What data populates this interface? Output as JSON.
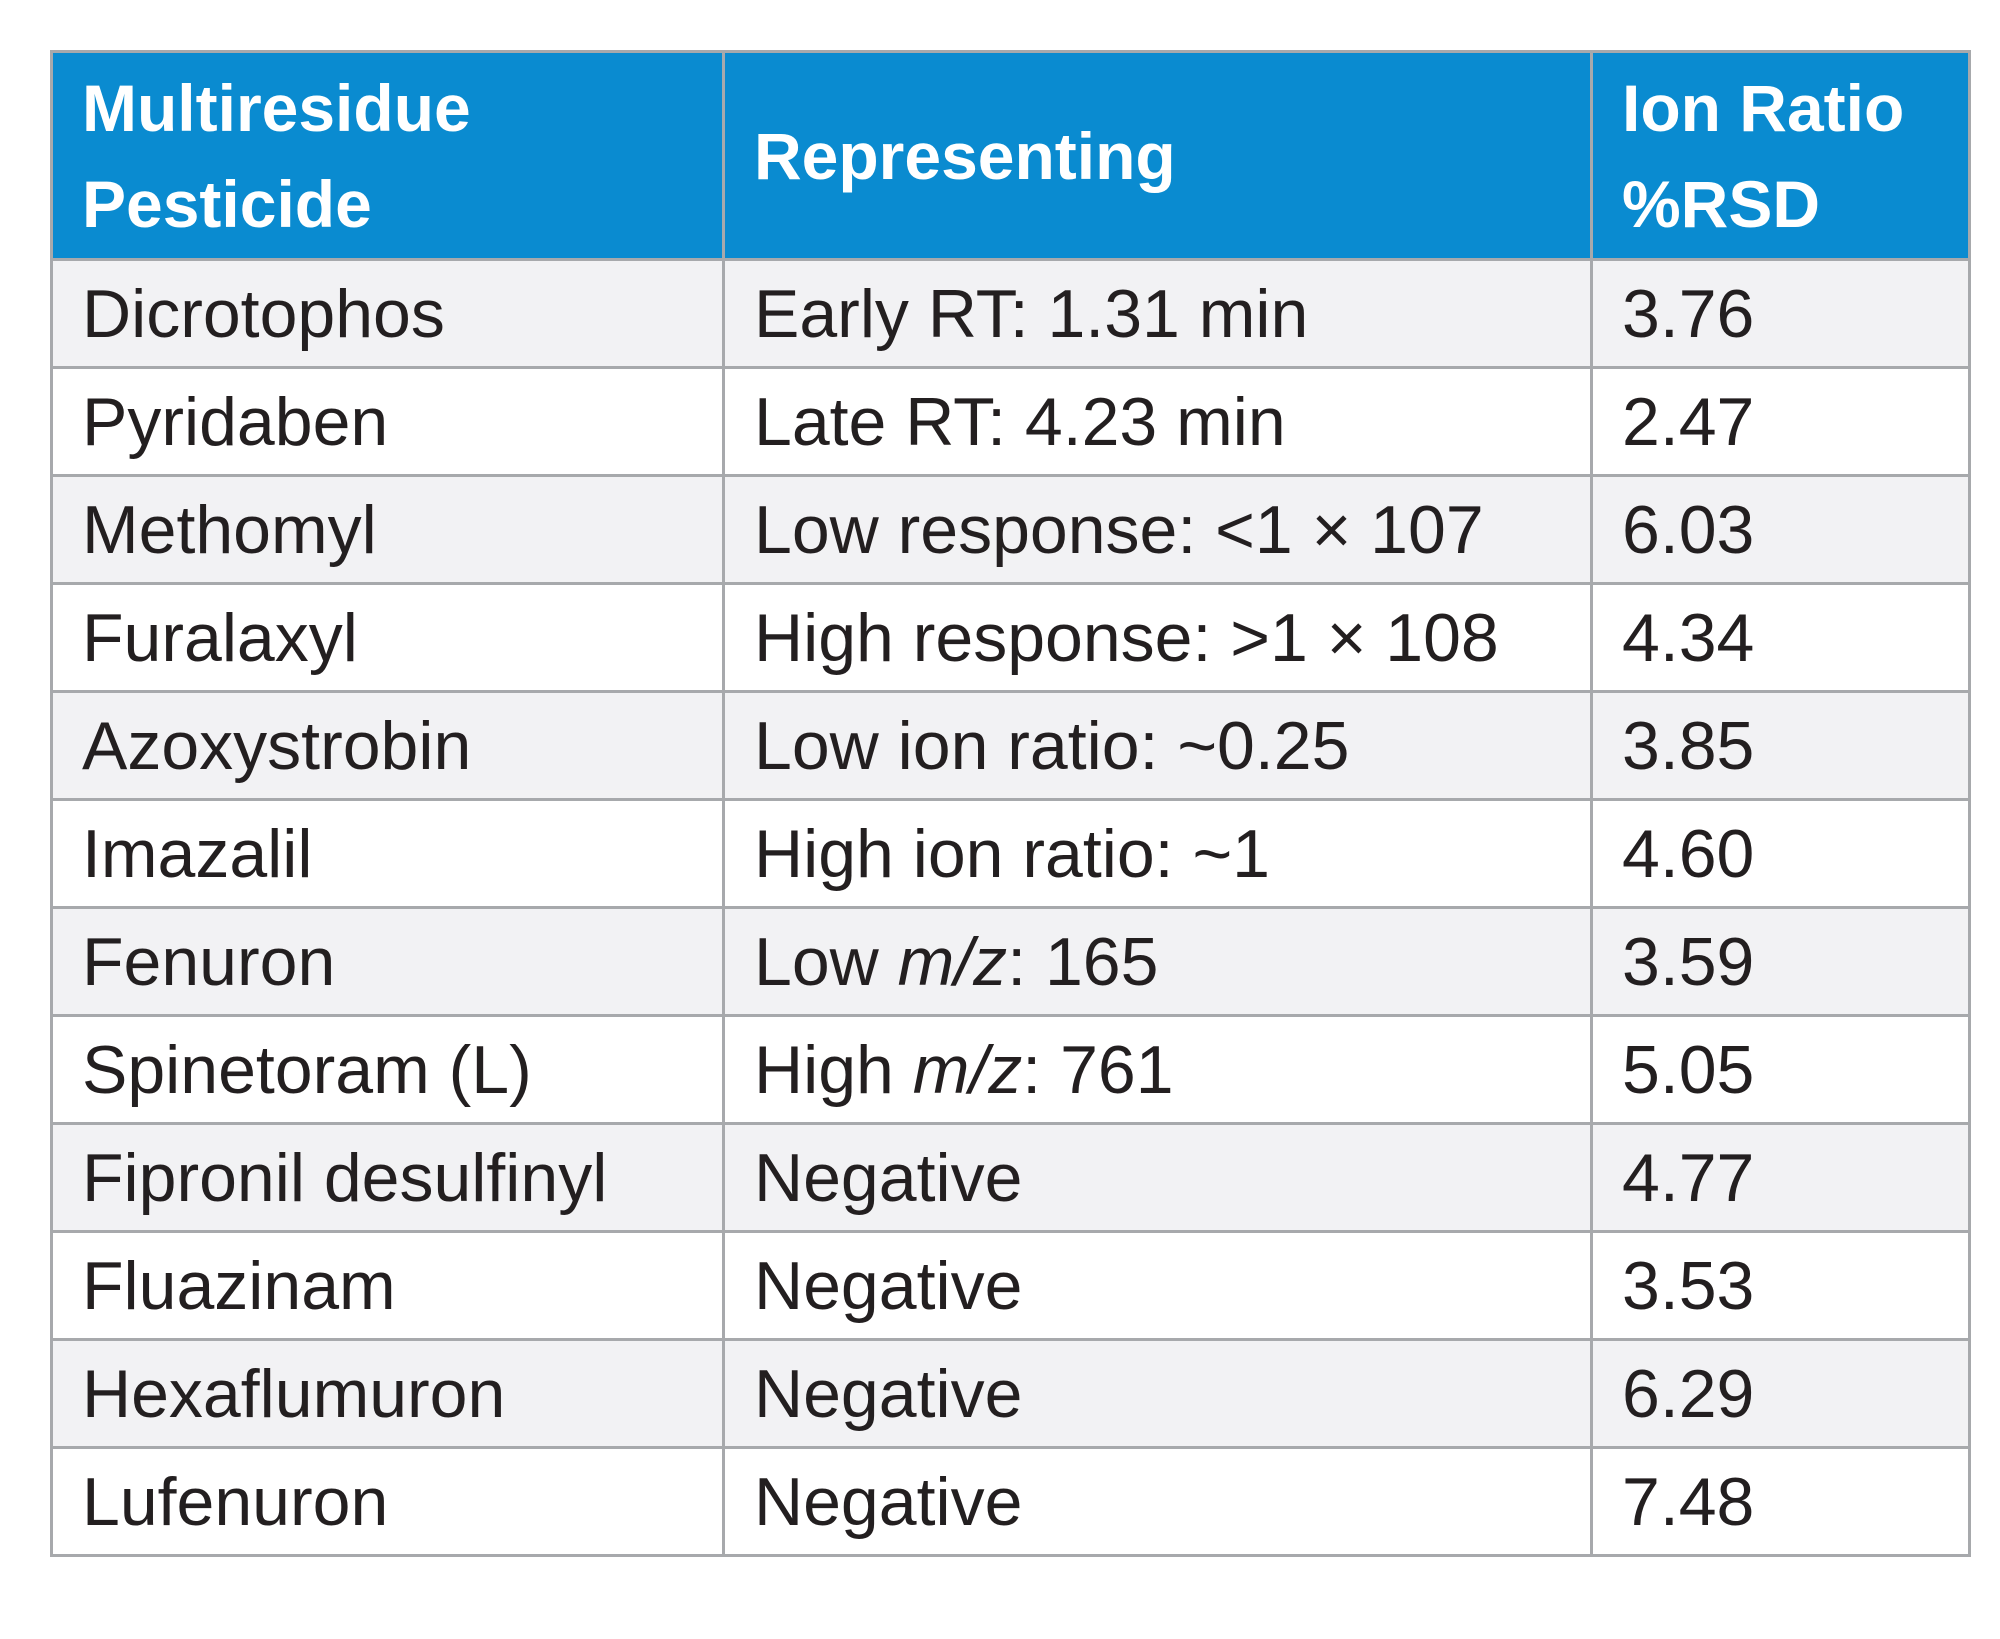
{
  "table": {
    "headers": [
      {
        "line1": "Multiresidue",
        "line2": "Pesticide"
      },
      {
        "line1": "Representing",
        "line2": ""
      },
      {
        "line1": "Ion Ratio",
        "line2": "%RSD"
      }
    ],
    "rows": [
      {
        "pesticide": "Dicrotophos",
        "rep_pre": "Early RT: 1.31 min",
        "rep_italic": "",
        "rep_post": "",
        "rsd": "3.76"
      },
      {
        "pesticide": "Pyridaben",
        "rep_pre": "Late RT: 4.23 min",
        "rep_italic": "",
        "rep_post": "",
        "rsd": "2.47"
      },
      {
        "pesticide": "Methomyl",
        "rep_pre": "Low response: <1 × 107",
        "rep_italic": "",
        "rep_post": "",
        "rsd": "6.03"
      },
      {
        "pesticide": "Furalaxyl",
        "rep_pre": "High response: >1 × 108",
        "rep_italic": "",
        "rep_post": "",
        "rsd": "4.34"
      },
      {
        "pesticide": "Azoxystrobin",
        "rep_pre": "Low ion ratio: ~0.25",
        "rep_italic": "",
        "rep_post": "",
        "rsd": "3.85"
      },
      {
        "pesticide": "Imazalil",
        "rep_pre": "High ion ratio: ~1",
        "rep_italic": "",
        "rep_post": "",
        "rsd": "4.60"
      },
      {
        "pesticide": "Fenuron",
        "rep_pre": "Low ",
        "rep_italic": "m/z",
        "rep_post": ": 165",
        "rsd": "3.59"
      },
      {
        "pesticide": "Spinetoram (L)",
        "rep_pre": "High ",
        "rep_italic": "m/z",
        "rep_post": ": 761",
        "rsd": "5.05"
      },
      {
        "pesticide": "Fipronil desulfinyl",
        "rep_pre": "Negative",
        "rep_italic": "",
        "rep_post": "",
        "rsd": "4.77"
      },
      {
        "pesticide": "Fluazinam",
        "rep_pre": "Negative",
        "rep_italic": "",
        "rep_post": "",
        "rsd": "3.53"
      },
      {
        "pesticide": "Hexaflumuron",
        "rep_pre": "Negative",
        "rep_italic": "",
        "rep_post": "",
        "rsd": "6.29"
      },
      {
        "pesticide": "Lufenuron",
        "rep_pre": "Negative",
        "rep_italic": "",
        "rep_post": "",
        "rsd": "7.48"
      }
    ]
  },
  "colors": {
    "header_bg": "#0a8bd0",
    "header_text": "#ffffff",
    "row_alt_bg": "#f2f2f4",
    "border": "#a7a9ac",
    "body_text": "#231f20"
  }
}
